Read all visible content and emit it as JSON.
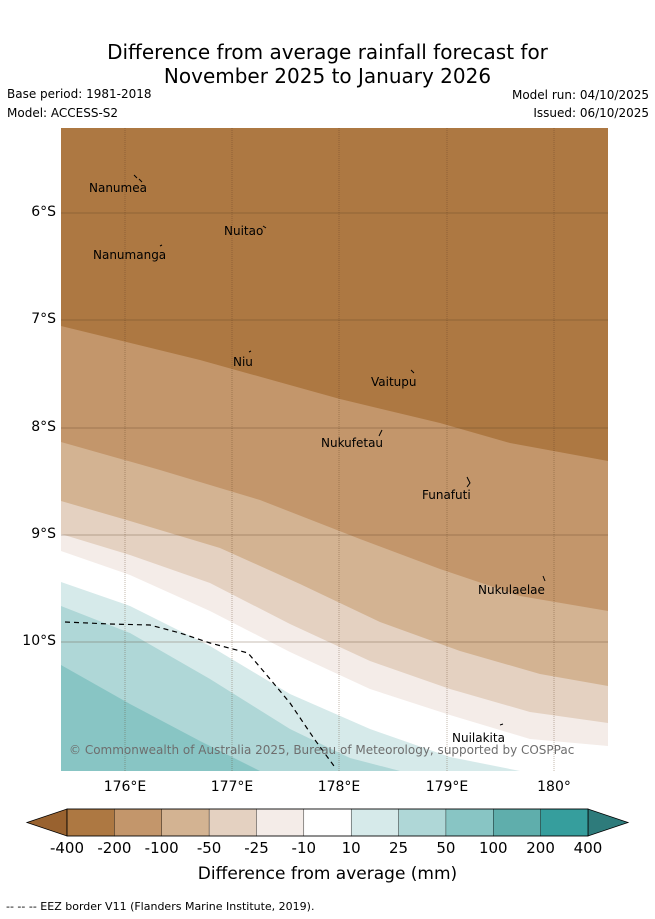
{
  "title": {
    "line1": "Difference from average rainfall forecast for",
    "line2": "November 2025 to January 2026"
  },
  "meta": {
    "base_period": "Base period: 1981-2018",
    "model": "Model: ACCESS-S2",
    "model_run": "Model run: 04/10/2025",
    "issued": "Issued: 06/10/2025"
  },
  "map": {
    "longitude_labels": [
      "176°E",
      "177°E",
      "178°E",
      "179°E",
      "180°"
    ],
    "latitude_labels": [
      "6°S",
      "7°S",
      "8°S",
      "9°S",
      "10°S"
    ],
    "places": [
      "Nanumea",
      "Nuitao",
      "Nanumanga",
      "Niu",
      "Vaitupu",
      "Nukufetau",
      "Funafuti",
      "Nukulaelae",
      "Nuilakita"
    ],
    "copyright": "© Commonwealth of Australia 2025, Bureau of Meteorology, supported by COSPPac"
  },
  "colorbar": {
    "ticks": [
      "-400",
      "-200",
      "-100",
      "-50",
      "-25",
      "-10",
      "10",
      "25",
      "50",
      "100",
      "200",
      "400"
    ],
    "colors": [
      "#ad7842",
      "#c3966b",
      "#d3b392",
      "#e4d1c1",
      "#f4ece8",
      "#ffffff",
      "#d6eaea",
      "#afd7d7",
      "#88c5c4",
      "#5faeac",
      "#369e9d"
    ],
    "under_color": "#99622f",
    "over_color": "#2e7b7b",
    "label": "Difference from average (mm)"
  },
  "footer": {
    "legend": "-- -- -- EEZ border V11 (Flanders Marine Institute, 2019)."
  }
}
